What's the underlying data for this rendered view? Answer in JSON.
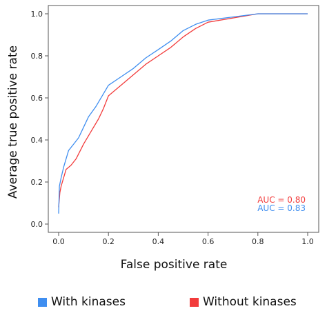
{
  "chart_data": {
    "type": "line",
    "title": "",
    "xlabel": "False positive rate",
    "ylabel": "Average true positive rate",
    "xlim": [
      0.0,
      1.0
    ],
    "ylim": [
      0.0,
      1.0
    ],
    "x_ticks": [
      "0.0",
      "0.2",
      "0.4",
      "0.6",
      "0.8",
      "1.0"
    ],
    "y_ticks": [
      "0.0",
      "0.2",
      "0.4",
      "0.6",
      "0.8",
      "1.0"
    ],
    "grid": false,
    "legend_position": "bottom",
    "series": [
      {
        "name": "With kinases",
        "color": "#3f8ef0",
        "auc_label": "AUC = 0.83",
        "points": [
          [
            0.0,
            0.05
          ],
          [
            0.003,
            0.18
          ],
          [
            0.01,
            0.22
          ],
          [
            0.02,
            0.27
          ],
          [
            0.03,
            0.31
          ],
          [
            0.04,
            0.35
          ],
          [
            0.06,
            0.38
          ],
          [
            0.08,
            0.41
          ],
          [
            0.1,
            0.46
          ],
          [
            0.12,
            0.51
          ],
          [
            0.15,
            0.56
          ],
          [
            0.18,
            0.62
          ],
          [
            0.2,
            0.66
          ],
          [
            0.25,
            0.7
          ],
          [
            0.3,
            0.74
          ],
          [
            0.35,
            0.79
          ],
          [
            0.4,
            0.83
          ],
          [
            0.45,
            0.87
          ],
          [
            0.5,
            0.92
          ],
          [
            0.55,
            0.95
          ],
          [
            0.6,
            0.97
          ],
          [
            0.7,
            0.985
          ],
          [
            0.8,
            1.0
          ],
          [
            1.0,
            1.0
          ]
        ]
      },
      {
        "name": "Without kinases",
        "color": "#f23b3b",
        "auc_label": "AUC = 0.80",
        "points": [
          [
            0.0,
            0.08
          ],
          [
            0.005,
            0.15
          ],
          [
            0.01,
            0.18
          ],
          [
            0.02,
            0.22
          ],
          [
            0.03,
            0.26
          ],
          [
            0.05,
            0.28
          ],
          [
            0.07,
            0.31
          ],
          [
            0.1,
            0.38
          ],
          [
            0.13,
            0.44
          ],
          [
            0.16,
            0.5
          ],
          [
            0.18,
            0.55
          ],
          [
            0.2,
            0.61
          ],
          [
            0.25,
            0.66
          ],
          [
            0.3,
            0.71
          ],
          [
            0.35,
            0.76
          ],
          [
            0.4,
            0.8
          ],
          [
            0.45,
            0.84
          ],
          [
            0.5,
            0.89
          ],
          [
            0.55,
            0.93
          ],
          [
            0.6,
            0.96
          ],
          [
            0.7,
            0.98
          ],
          [
            0.8,
            1.0
          ],
          [
            1.0,
            1.0
          ]
        ]
      }
    ]
  }
}
